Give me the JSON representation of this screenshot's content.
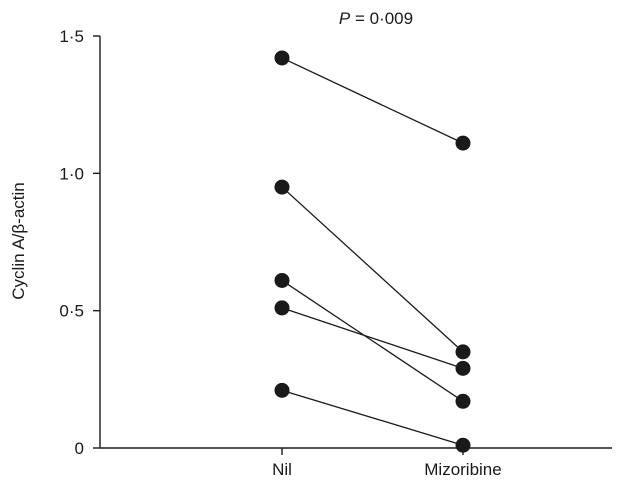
{
  "chart_data": {
    "type": "scatter",
    "subtype": "paired-lines",
    "title": "",
    "annotation": {
      "p_symbol": "P",
      "p_text": " = 0·009"
    },
    "xlabel": "",
    "ylabel": "Cyclin A/β-actin",
    "categories": [
      "Nil",
      "Mizoribine"
    ],
    "ylim": [
      0,
      1.5
    ],
    "yticks": [
      0,
      0.5,
      1.0,
      1.5
    ],
    "ytick_labels": [
      "0",
      "0·5",
      "1·0",
      "1·5"
    ],
    "grid": false,
    "series": [
      {
        "values": [
          1.42,
          1.11
        ]
      },
      {
        "values": [
          0.95,
          0.35
        ]
      },
      {
        "values": [
          0.61,
          0.17
        ]
      },
      {
        "values": [
          0.51,
          0.29
        ]
      },
      {
        "values": [
          0.21,
          0.01
        ]
      }
    ],
    "colors": {
      "marker": "#1a1a1a",
      "line": "#1a1a1a",
      "axis": "#1a1a1a"
    }
  }
}
